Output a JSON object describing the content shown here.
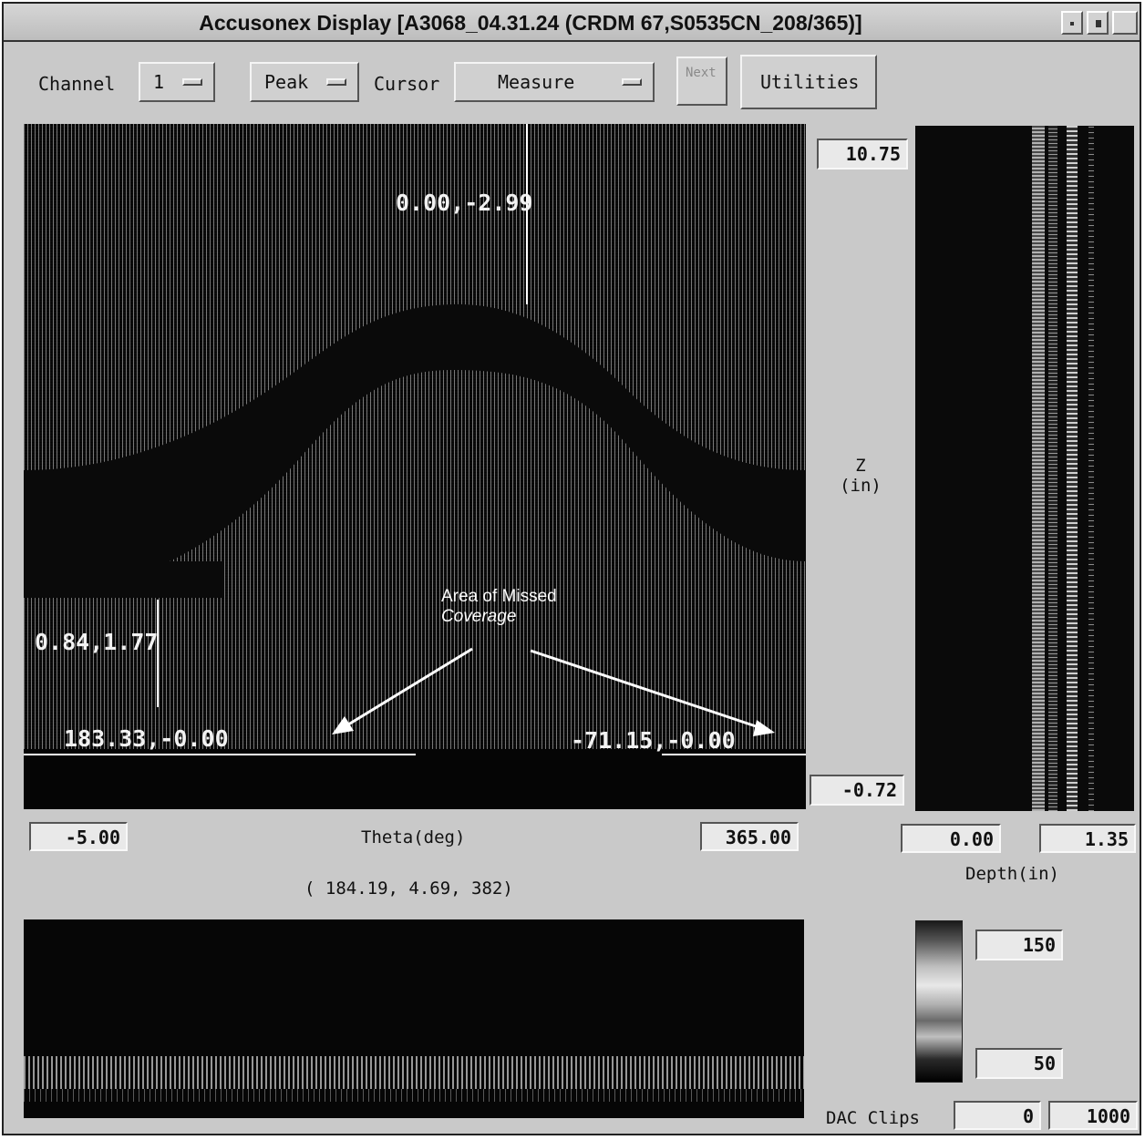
{
  "window": {
    "title": "Accusonex Display [A3068_04.31.24 (CRDM 67,S0535CN_208/365)]"
  },
  "toolbar": {
    "channel_label": "Channel",
    "channel_value": "1",
    "mode_value": "Peak",
    "cursor_label": "Cursor",
    "cursor_value": "Measure",
    "next_label": "Next",
    "utilities_label": "Utilities"
  },
  "main_plot": {
    "readout_top": "0.00,-2.99",
    "readout_left": "0.84,1.77",
    "readout_bottom_left": "183.33,-0.00",
    "readout_bottom_right": "-71.15,-0.00",
    "annotation_line1": "Area of Missed",
    "annotation_line2": "Coverage"
  },
  "z_axis": {
    "max": "10.75",
    "min": "-0.72",
    "label_line1": "Z",
    "label_line2": "(in)"
  },
  "theta_axis": {
    "min": "-5.00",
    "max": "365.00",
    "label": "Theta(deg)"
  },
  "cursor_position": "( 184.19, 4.69, 382)",
  "depth_axis": {
    "min": "0.00",
    "max": "1.35",
    "label": "Depth(in)"
  },
  "color_scale": {
    "max": "150",
    "min": "50"
  },
  "dac": {
    "label": "DAC Clips",
    "low": "0",
    "high": "1000"
  },
  "icons": [
    "minimize-icon",
    "maximize-icon",
    "option-menu-indicator-icon",
    "arrow-icon"
  ]
}
